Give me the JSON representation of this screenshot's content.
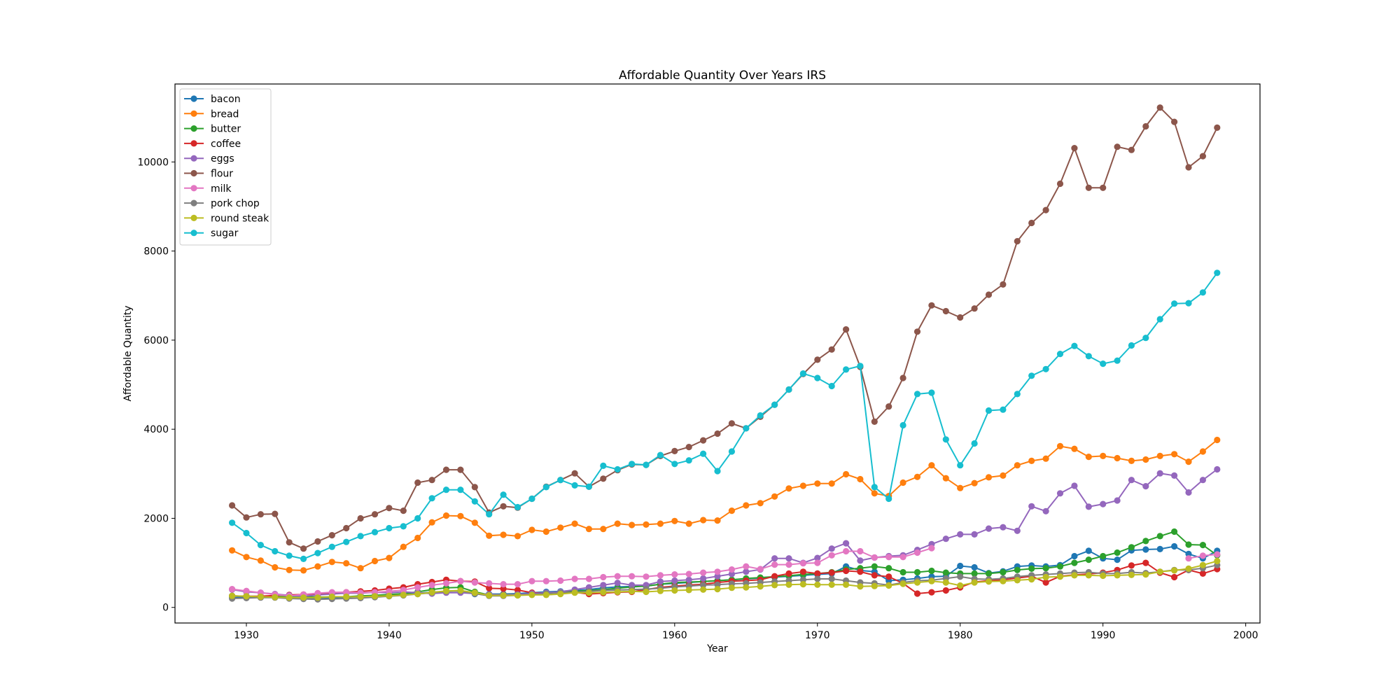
{
  "chart_data": {
    "type": "line",
    "title": "Affordable Quantity Over Years IRS",
    "xlabel": "Year",
    "ylabel": "Affordable Quantity",
    "xlim": [
      1925,
      2001
    ],
    "ylim": [
      -350,
      11750
    ],
    "xticks": [
      1930,
      1940,
      1950,
      1960,
      1970,
      1980,
      1990,
      2000
    ],
    "yticks": [
      0,
      2000,
      4000,
      6000,
      8000,
      10000
    ],
    "grid": false,
    "legend_position": "top-left",
    "marker": "circle",
    "x": [
      1929,
      1930,
      1931,
      1932,
      1933,
      1934,
      1935,
      1936,
      1937,
      1938,
      1939,
      1940,
      1941,
      1942,
      1943,
      1944,
      1945,
      1946,
      1947,
      1948,
      1949,
      1950,
      1951,
      1952,
      1953,
      1954,
      1955,
      1956,
      1957,
      1958,
      1959,
      1960,
      1961,
      1962,
      1963,
      1964,
      1965,
      1966,
      1967,
      1968,
      1969,
      1970,
      1971,
      1972,
      1973,
      1974,
      1975,
      1976,
      1977,
      1978,
      1979,
      1980,
      1981,
      1982,
      1983,
      1984,
      1985,
      1986,
      1987,
      1988,
      1989,
      1990,
      1991,
      1992,
      1993,
      1994,
      1995,
      1996,
      1997,
      1998
    ],
    "series": [
      {
        "name": "bacon",
        "color": "#1f77b4",
        "values": [
          220,
          230,
          240,
          250,
          220,
          210,
          200,
          220,
          230,
          240,
          260,
          280,
          300,
          320,
          340,
          360,
          370,
          300,
          300,
          300,
          310,
          330,
          350,
          360,
          380,
          400,
          440,
          460,
          470,
          480,
          520,
          540,
          560,
          580,
          600,
          620,
          640,
          660,
          680,
          700,
          720,
          740,
          760,
          920,
          830,
          800,
          600,
          620,
          650,
          690,
          700,
          930,
          900,
          770,
          810,
          920,
          940,
          920,
          950,
          1150,
          1270,
          1100,
          1070,
          1280,
          1300,
          1310,
          1370,
          1200,
          1100,
          1270
        ]
      },
      {
        "name": "bread",
        "color": "#ff7f0e",
        "values": [
          1280,
          1130,
          1050,
          900,
          840,
          830,
          920,
          1020,
          990,
          880,
          1040,
          1110,
          1360,
          1560,
          1910,
          2060,
          2050,
          1900,
          1610,
          1630,
          1600,
          1740,
          1700,
          1790,
          1880,
          1760,
          1760,
          1880,
          1850,
          1860,
          1880,
          1940,
          1880,
          1960,
          1950,
          2170,
          2290,
          2340,
          2490,
          2670,
          2730,
          2780,
          2780,
          2990,
          2880,
          2560,
          2500,
          2800,
          2930,
          3190,
          2900,
          2680,
          2790,
          2920,
          2960,
          3190,
          3290,
          3340,
          3620,
          3560,
          3380,
          3400,
          3350,
          3290,
          3320,
          3400,
          3440,
          3270,
          3500,
          3760
        ]
      },
      {
        "name": "butter",
        "color": "#2ca02c",
        "values": [
          260,
          250,
          240,
          240,
          250,
          250,
          230,
          240,
          240,
          260,
          270,
          290,
          310,
          350,
          400,
          440,
          450,
          350,
          280,
          290,
          290,
          300,
          320,
          340,
          360,
          380,
          400,
          430,
          460,
          480,
          520,
          560,
          570,
          580,
          600,
          620,
          650,
          670,
          690,
          710,
          740,
          760,
          790,
          850,
          880,
          920,
          880,
          790,
          790,
          820,
          780,
          760,
          760,
          760,
          790,
          840,
          870,
          880,
          920,
          1000,
          1070,
          1150,
          1230,
          1350,
          1490,
          1600,
          1700,
          1410,
          1400,
          1170
        ]
      },
      {
        "name": "coffee",
        "color": "#d62728",
        "values": [
          260,
          250,
          250,
          270,
          280,
          290,
          300,
          330,
          340,
          360,
          380,
          420,
          450,
          520,
          570,
          620,
          590,
          580,
          430,
          420,
          390,
          330,
          320,
          330,
          340,
          300,
          320,
          340,
          350,
          400,
          450,
          480,
          500,
          520,
          560,
          590,
          600,
          620,
          700,
          760,
          800,
          760,
          780,
          820,
          800,
          720,
          690,
          540,
          310,
          340,
          380,
          450,
          570,
          600,
          620,
          660,
          700,
          560,
          700,
          730,
          750,
          780,
          840,
          940,
          1000,
          780,
          680,
          840,
          760,
          860
        ]
      },
      {
        "name": "eggs",
        "color": "#9467bd",
        "values": [
          400,
          350,
          330,
          300,
          270,
          250,
          280,
          300,
          320,
          320,
          340,
          330,
          350,
          330,
          310,
          330,
          330,
          310,
          290,
          280,
          290,
          310,
          330,
          350,
          400,
          450,
          500,
          550,
          500,
          500,
          580,
          600,
          620,
          650,
          700,
          750,
          800,
          850,
          1100,
          1100,
          1000,
          1110,
          1320,
          1440,
          1050,
          1120,
          1150,
          1170,
          1290,
          1420,
          1540,
          1640,
          1640,
          1770,
          1800,
          1720,
          2270,
          2160,
          2560,
          2730,
          2260,
          2320,
          2400,
          2860,
          2720,
          3010,
          2960,
          2580,
          2860,
          3100
        ]
      },
      {
        "name": "flour",
        "color": "#8c564b",
        "values": [
          2290,
          2020,
          2090,
          2100,
          1460,
          1320,
          1480,
          1620,
          1780,
          2000,
          2090,
          2230,
          2170,
          2800,
          2860,
          3090,
          3090,
          2700,
          2130,
          2270,
          2240,
          2440,
          2710,
          2860,
          3010,
          2710,
          2890,
          3080,
          3210,
          3200,
          3400,
          3510,
          3600,
          3750,
          3900,
          4130,
          4020,
          4280,
          4550,
          4890,
          5240,
          5560,
          5790,
          6240,
          5400,
          4170,
          4510,
          5150,
          6190,
          6780,
          6650,
          6510,
          6710,
          7020,
          7250,
          8220,
          8630,
          8920,
          9510,
          10310,
          9420,
          9420,
          10340,
          10270,
          10800,
          11220,
          10900,
          9880,
          10130,
          10770
        ]
      },
      {
        "name": "milk",
        "color": "#e377c2",
        "values": [
          410,
          370,
          330,
          290,
          260,
          290,
          320,
          340,
          340,
          330,
          340,
          360,
          390,
          450,
          500,
          540,
          590,
          560,
          540,
          520,
          520,
          590,
          590,
          600,
          640,
          640,
          680,
          700,
          700,
          690,
          720,
          740,
          750,
          780,
          800,
          850,
          920,
          860,
          960,
          960,
          990,
          1000,
          1170,
          1260,
          1260,
          1120,
          1130,
          1130,
          1230,
          1330,
          null,
          null,
          null,
          null,
          null,
          null,
          null,
          null,
          null,
          null,
          null,
          null,
          null,
          null,
          null,
          null,
          null,
          1100,
          1160,
          1190
        ]
      },
      {
        "name": "pork chop",
        "color": "#7f7f7f",
        "values": [
          200,
          210,
          220,
          220,
          200,
          190,
          180,
          190,
          200,
          210,
          230,
          250,
          270,
          300,
          330,
          360,
          370,
          310,
          260,
          260,
          270,
          290,
          310,
          330,
          340,
          360,
          380,
          390,
          400,
          410,
          430,
          460,
          480,
          500,
          510,
          530,
          540,
          560,
          580,
          600,
          620,
          640,
          640,
          600,
          560,
          540,
          500,
          560,
          600,
          610,
          650,
          690,
          640,
          630,
          650,
          690,
          720,
          740,
          760,
          780,
          790,
          760,
          760,
          790,
          770,
          800,
          840,
          840,
          880,
          950
        ]
      },
      {
        "name": "round steak",
        "color": "#bcbd22",
        "values": [
          260,
          250,
          240,
          230,
          220,
          220,
          220,
          240,
          240,
          240,
          250,
          260,
          280,
          300,
          340,
          370,
          380,
          330,
          270,
          270,
          270,
          280,
          280,
          300,
          330,
          330,
          340,
          350,
          360,
          350,
          370,
          380,
          390,
          400,
          410,
          440,
          450,
          470,
          500,
          510,
          520,
          510,
          510,
          510,
          470,
          480,
          490,
          530,
          560,
          590,
          560,
          490,
          560,
          580,
          590,
          610,
          630,
          680,
          690,
          720,
          720,
          710,
          720,
          730,
          740,
          800,
          830,
          870,
          950,
          1040
        ]
      },
      {
        "name": "sugar",
        "color": "#17becf",
        "values": [
          1900,
          1670,
          1400,
          1260,
          1160,
          1090,
          1220,
          1360,
          1470,
          1600,
          1690,
          1780,
          1820,
          2000,
          2450,
          2640,
          2640,
          2380,
          2090,
          2530,
          2250,
          2440,
          2700,
          2860,
          2740,
          2710,
          3180,
          3100,
          3220,
          3200,
          3420,
          3220,
          3300,
          3450,
          3060,
          3500,
          4020,
          4310,
          4550,
          4890,
          5250,
          5150,
          4970,
          5340,
          5420,
          2700,
          2440,
          4090,
          4790,
          4820,
          3770,
          3190,
          3680,
          4420,
          4440,
          4790,
          5200,
          5350,
          5690,
          5870,
          5640,
          5470,
          5540,
          5880,
          6050,
          6470,
          6820,
          6830,
          7070,
          7510
        ]
      }
    ]
  }
}
